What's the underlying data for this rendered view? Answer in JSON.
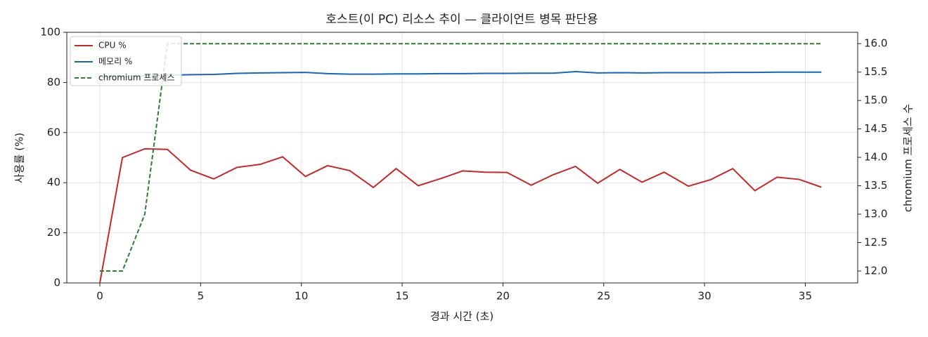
{
  "chart_data": {
    "type": "line",
    "title": "호스트(이 PC) 리소스 추이 — 클라이언트 병목 판단용",
    "x_label": "경과 시간 (초)",
    "y_label": "사용률 (%)",
    "y2_label": "chromium 프로세스 수",
    "x": [
      0,
      1.12,
      2.23,
      3.35,
      4.5,
      5.65,
      6.8,
      7.95,
      9.07,
      10.2,
      11.3,
      12.4,
      13.57,
      14.7,
      15.8,
      16.9,
      18.0,
      19.1,
      20.2,
      21.4,
      22.5,
      23.6,
      24.7,
      25.8,
      26.9,
      28.0,
      29.2,
      30.3,
      31.4,
      32.5,
      33.6,
      34.7,
      35.8
    ],
    "series": [
      {
        "name": "CPU %",
        "color": "#c62828",
        "values": [
          0,
          50,
          53.5,
          53.3,
          45,
          41.5,
          46.1,
          47.3,
          50.3,
          42.5,
          46.8,
          44.8,
          38.1,
          45.6,
          38.8,
          41.6,
          44.7,
          44.2,
          44.1,
          39,
          43.2,
          46.5,
          39.8,
          45.3,
          40.2,
          44.2,
          38.6,
          41.2,
          45.6,
          36.8,
          42.2,
          41.3,
          38.2
        ]
      },
      {
        "name": "메모리 %",
        "color": "#1565c0",
        "values": [
          82.0,
          82.4,
          82.7,
          82.9,
          83.1,
          83.2,
          83.6,
          83.8,
          83.9,
          84.0,
          83.5,
          83.3,
          83.3,
          83.4,
          83.4,
          83.5,
          83.5,
          83.6,
          83.6,
          83.7,
          83.7,
          84.3,
          83.8,
          83.9,
          83.8,
          83.9,
          83.9,
          83.9,
          84.0,
          84.0,
          84.1,
          84.1,
          84.1
        ]
      },
      {
        "name": "chromium 프로세스",
        "color": "#2e7d32",
        "dashed": true,
        "axis": "y2",
        "values": [
          12,
          12,
          13,
          16,
          16,
          16,
          16,
          16,
          16,
          16,
          16,
          16,
          16,
          16,
          16,
          16,
          16,
          16,
          16,
          16,
          16,
          16,
          16,
          16,
          16,
          16,
          16,
          16,
          16,
          16,
          16,
          16,
          16
        ]
      }
    ],
    "xlim": [
      -1.64,
      37.6
    ],
    "xticks": [
      0,
      5,
      10,
      15,
      20,
      25,
      30,
      35
    ],
    "ylim": [
      0,
      100
    ],
    "yticks": [
      0,
      20,
      40,
      60,
      80,
      100
    ],
    "y2lim": [
      11.79,
      16.2
    ],
    "y2ticks": [
      {
        "value": 12,
        "label": "12.0"
      },
      12.5,
      {
        "value": 13,
        "label": "13.0"
      },
      13.5,
      {
        "value": 14,
        "label": "14.0"
      },
      14.5,
      {
        "value": 15,
        "label": "15.0"
      },
      15.5,
      {
        "value": 16,
        "label": "16.0"
      }
    ],
    "grid": true,
    "legend": "upper-left"
  }
}
